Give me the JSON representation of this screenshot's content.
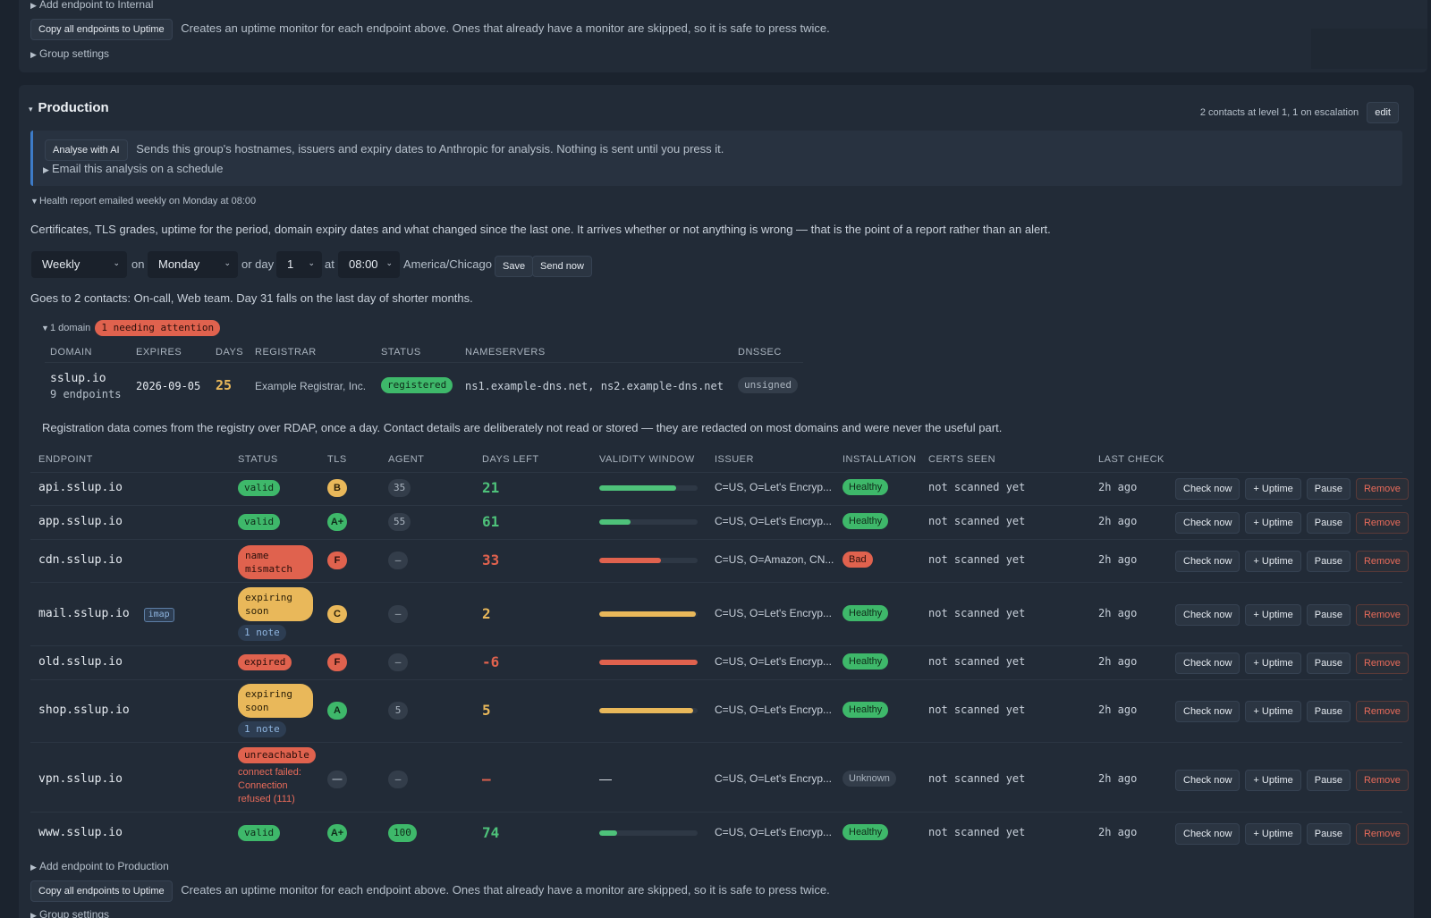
{
  "top_group": {
    "add_endpoint": "Add endpoint to Internal",
    "copy_button": "Copy all endpoints to Uptime",
    "copy_note": "Creates an uptime monitor for each endpoint above. Ones that already have a monitor are skipped, so it is safe to press twice.",
    "group_settings": "Group settings"
  },
  "group": {
    "name": "Production",
    "contacts_summary": "2 contacts at level 1, 1 on escalation",
    "edit_label": "edit",
    "ai": {
      "button": "Analyse with AI",
      "note": "Sends this group's hostnames, issuers and expiry dates to Anthropic for analysis. Nothing is sent until you press it.",
      "email_schedule": "Email this analysis on a schedule"
    },
    "report": {
      "toggle": "Health report emailed weekly on Monday at 08:00",
      "description": "Certificates, TLS grades, uptime for the period, domain expiry dates and what changed since the last one. It arrives whether or not anything is wrong — that is the point of a report rather than an alert.",
      "frequency": "Weekly",
      "on_label": "on",
      "weekday": "Monday",
      "or_day_label": "or day",
      "day": "1",
      "at_label": "at",
      "time": "08:00",
      "timezone": "America/Chicago",
      "save": "Save",
      "send_now": "Send now",
      "recipients": "Goes to 2 contacts: On-call, Web team. Day 31 falls on the last day of shorter months."
    },
    "domains": {
      "toggle": "1 domain",
      "attention_badge": "1 needing attention",
      "headers": [
        "DOMAIN",
        "EXPIRES",
        "DAYS",
        "REGISTRAR",
        "STATUS",
        "NAMESERVERS",
        "DNSSEC"
      ],
      "rows": [
        {
          "domain": "sslup.io",
          "endpoints": "9 endpoints",
          "expires": "2026-09-05",
          "days": "25",
          "registrar": "Example Registrar, Inc.",
          "status": "registered",
          "nameservers": "ns1.example-dns.net, ns2.example-dns.net",
          "dnssec": "unsigned"
        }
      ],
      "note": "Registration data comes from the registry over RDAP, once a day. Contact details are deliberately not read or stored — they are redacted on most domains and were never the useful part."
    },
    "endpoints": {
      "headers": [
        "ENDPOINT",
        "STATUS",
        "TLS",
        "AGENT",
        "DAYS LEFT",
        "VALIDITY WINDOW",
        "ISSUER",
        "INSTALLATION",
        "CERTS SEEN",
        "LAST CHECK"
      ],
      "actions": {
        "check": "Check now",
        "uptime": "+ Uptime",
        "pause": "Pause",
        "remove": "Remove"
      },
      "rows": [
        {
          "host": "api.sslup.io",
          "tag": "",
          "status": "valid",
          "status_color": "green",
          "note": "",
          "tls": "B",
          "tls_color": "yellow",
          "agent": "35",
          "agent_color": "grey",
          "days": "21",
          "days_color": "green",
          "validity": 0.78,
          "validity_color": "green",
          "issuer": "C=US, O=Let's Encryp...",
          "installation": "Healthy",
          "install_color": "green",
          "certs": "not scanned yet",
          "last": "2h ago"
        },
        {
          "host": "app.sslup.io",
          "tag": "",
          "status": "valid",
          "status_color": "green",
          "note": "",
          "tls": "A+",
          "tls_color": "green",
          "agent": "55",
          "agent_color": "grey",
          "days": "61",
          "days_color": "green",
          "validity": 0.32,
          "validity_color": "green",
          "issuer": "C=US, O=Let's Encryp...",
          "installation": "Healthy",
          "install_color": "green",
          "certs": "not scanned yet",
          "last": "2h ago"
        },
        {
          "host": "cdn.sslup.io",
          "tag": "",
          "status": "name mismatch",
          "status_color": "red",
          "note": "",
          "tls": "F",
          "tls_color": "red",
          "agent": "—",
          "agent_color": "grey",
          "days": "33",
          "days_color": "red",
          "validity": 0.63,
          "validity_color": "red",
          "issuer": "C=US, O=Amazon, CN...",
          "installation": "Bad",
          "install_color": "red",
          "certs": "not scanned yet",
          "last": "2h ago"
        },
        {
          "host": "mail.sslup.io",
          "tag": "imap",
          "status": "expiring soon",
          "status_color": "yellow",
          "note": "1 note",
          "tls": "C",
          "tls_color": "yellow",
          "agent": "—",
          "agent_color": "grey",
          "days": "2",
          "days_color": "yellow",
          "validity": 0.98,
          "validity_color": "yellow",
          "issuer": "C=US, O=Let's Encryp...",
          "installation": "Healthy",
          "install_color": "green",
          "certs": "not scanned yet",
          "last": "2h ago"
        },
        {
          "host": "old.sslup.io",
          "tag": "",
          "status": "expired",
          "status_color": "red",
          "note": "",
          "tls": "F",
          "tls_color": "red",
          "agent": "—",
          "agent_color": "grey",
          "days": "-6",
          "days_color": "red",
          "validity": 1.0,
          "validity_color": "red",
          "issuer": "C=US, O=Let's Encryp...",
          "installation": "Healthy",
          "install_color": "green",
          "certs": "not scanned yet",
          "last": "2h ago"
        },
        {
          "host": "shop.sslup.io",
          "tag": "",
          "status": "expiring soon",
          "status_color": "yellow",
          "note": "1 note",
          "tls": "A",
          "tls_color": "green",
          "agent": "5",
          "agent_color": "grey",
          "days": "5",
          "days_color": "yellow",
          "validity": 0.95,
          "validity_color": "yellow",
          "issuer": "C=US, O=Let's Encryp...",
          "installation": "Healthy",
          "install_color": "green",
          "certs": "not scanned yet",
          "last": "2h ago"
        },
        {
          "host": "vpn.sslup.io",
          "tag": "",
          "status": "unreachable",
          "status_color": "red",
          "note": "connect failed: Connection refused (111)",
          "tls": "—",
          "tls_color": "none",
          "agent": "—",
          "agent_color": "grey",
          "days": "—",
          "days_color": "red",
          "validity": null,
          "validity_color": "",
          "issuer": "C=US, O=Let's Encryp...",
          "installation": "Unknown",
          "install_color": "grey",
          "certs": "not scanned yet",
          "last": "2h ago"
        },
        {
          "host": "www.sslup.io",
          "tag": "",
          "status": "valid",
          "status_color": "green",
          "note": "",
          "tls": "A+",
          "tls_color": "green",
          "agent": "100",
          "agent_color": "green",
          "days": "74",
          "days_color": "green",
          "validity": 0.18,
          "validity_color": "green",
          "issuer": "C=US, O=Let's Encryp...",
          "installation": "Healthy",
          "install_color": "green",
          "certs": "not scanned yet",
          "last": "2h ago"
        }
      ]
    },
    "add_endpoint": "Add endpoint to Production",
    "copy_button": "Copy all endpoints to Uptime",
    "copy_note": "Creates an uptime monitor for each endpoint above. Ones that already have a monitor are skipped, so it is safe to press twice.",
    "group_settings": "Group settings"
  }
}
